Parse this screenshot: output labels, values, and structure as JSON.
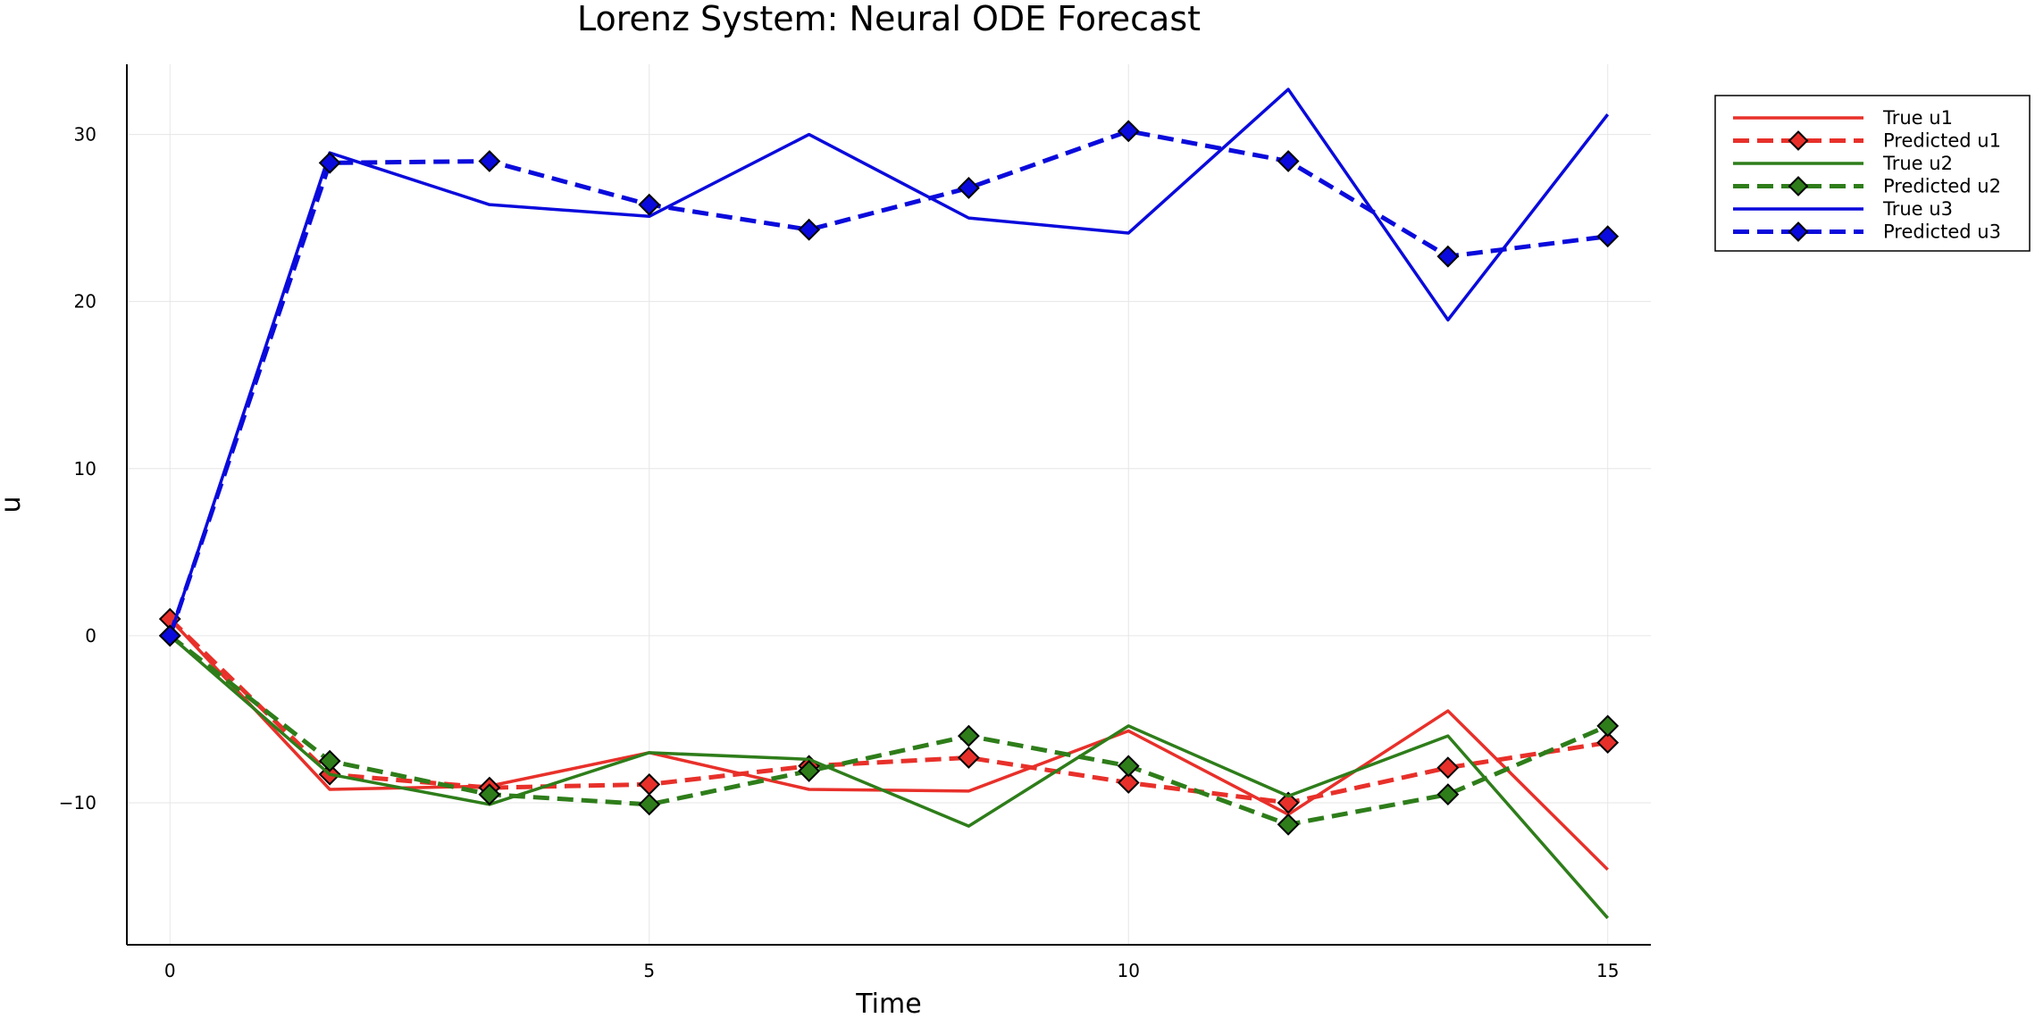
{
  "chart_data": {
    "type": "line",
    "title": "Lorenz System: Neural ODE Forecast",
    "xlabel": "Time",
    "ylabel": "u",
    "xlim": [
      -0.45,
      15.45
    ],
    "ylim": [
      -18.5,
      34.2
    ],
    "xticks": [
      0,
      5,
      10,
      15
    ],
    "xtick_labels": [
      "0",
      "5",
      "10",
      "15"
    ],
    "yticks": [
      -10,
      0,
      10,
      20,
      30
    ],
    "ytick_labels": [
      "−10",
      "0",
      "10",
      "20",
      "30"
    ],
    "grid": true,
    "legend_position": "top-right (outside)",
    "x": [
      0,
      1.667,
      3.333,
      5.0,
      6.667,
      8.333,
      10.0,
      11.667,
      13.333,
      15.0
    ],
    "series": [
      {
        "name": "True u1",
        "color": "#e8302a",
        "style": "solid",
        "marker": "none",
        "values": [
          1.0,
          -9.2,
          -9.0,
          -7.0,
          -9.2,
          -9.3,
          -5.7,
          -10.7,
          -4.5,
          -14.0
        ]
      },
      {
        "name": "Predicted u1",
        "color": "#e8302a",
        "style": "dashed",
        "marker": "diamond",
        "values": [
          1.0,
          -8.3,
          -9.1,
          -8.9,
          -7.8,
          -7.3,
          -8.8,
          -10.0,
          -7.9,
          -6.4
        ]
      },
      {
        "name": "True u2",
        "color": "#2e7d1a",
        "style": "solid",
        "marker": "none",
        "values": [
          0.0,
          -8.3,
          -10.1,
          -7.0,
          -7.4,
          -11.4,
          -5.4,
          -9.6,
          -6.0,
          -16.9
        ]
      },
      {
        "name": "Predicted u2",
        "color": "#2e7d1a",
        "style": "dashed",
        "marker": "diamond",
        "values": [
          0.0,
          -7.5,
          -9.5,
          -10.1,
          -8.1,
          -6.0,
          -7.8,
          -11.3,
          -9.5,
          -5.4
        ]
      },
      {
        "name": "True u3",
        "color": "#0a0adc",
        "style": "solid",
        "marker": "none",
        "values": [
          0.0,
          28.9,
          25.8,
          25.1,
          30.0,
          25.0,
          24.1,
          32.7,
          18.9,
          31.2
        ]
      },
      {
        "name": "Predicted u3",
        "color": "#0a0adc",
        "style": "dashed",
        "marker": "diamond",
        "values": [
          0.0,
          28.3,
          28.4,
          25.8,
          24.3,
          26.8,
          30.2,
          28.4,
          22.7,
          23.9
        ]
      }
    ]
  }
}
